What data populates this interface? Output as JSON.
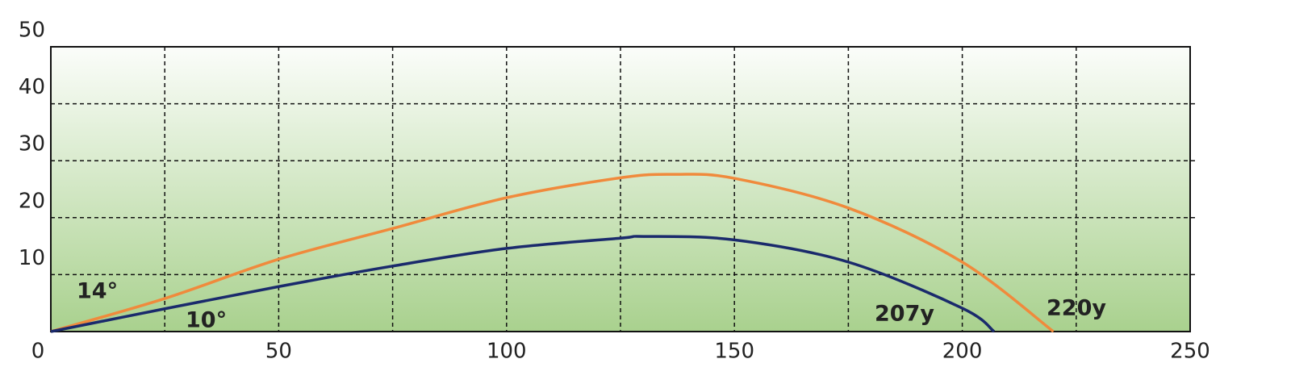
{
  "chart_data": {
    "type": "line",
    "xlim": [
      0,
      250
    ],
    "xticks": [
      0,
      50,
      100,
      150,
      200,
      250
    ],
    "x_minor_grid": [
      25,
      75,
      125,
      175,
      225
    ],
    "ylim": [
      0,
      50
    ],
    "yticks": [
      10,
      20,
      30,
      40,
      50
    ],
    "grid": true,
    "series": [
      {
        "name": "14°",
        "end_label": "220y",
        "color": "#f08a3c",
        "x": [
          0,
          25,
          50,
          75,
          100,
          125,
          137,
          150,
          175,
          200,
          220
        ],
        "values": [
          0,
          5.8,
          12.7,
          18.1,
          23.5,
          27,
          27.6,
          26.9,
          21.7,
          12.2,
          0
        ]
      },
      {
        "name": "10°",
        "end_label": "207y",
        "color": "#1a2a6c",
        "x": [
          0,
          25,
          50,
          75,
          100,
          125,
          130,
          150,
          175,
          200,
          207
        ],
        "values": [
          0,
          4.0,
          7.9,
          11.5,
          14.6,
          16.4,
          16.7,
          16.1,
          12.2,
          4.1,
          0
        ]
      }
    ]
  }
}
